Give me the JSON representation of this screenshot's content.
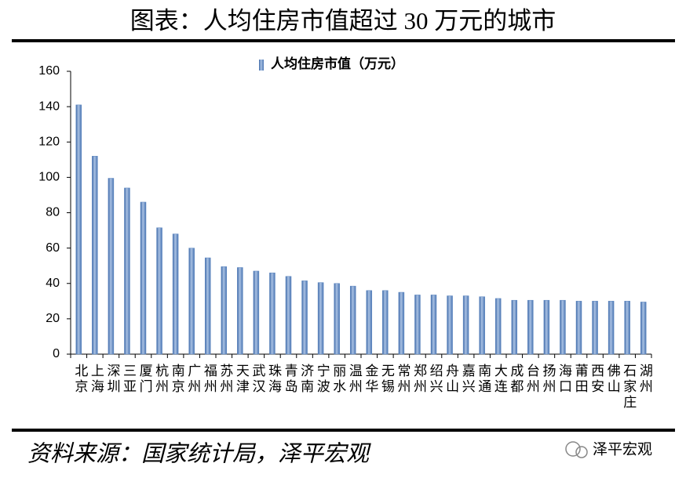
{
  "chart_data": {
    "type": "bar",
    "title": "图表：人均住房市值超过 30 万元的城市",
    "categories": [
      "北京",
      "上海",
      "深圳",
      "三亚",
      "厦门",
      "杭州",
      "南京",
      "广州",
      "福州",
      "苏州",
      "天津",
      "武汉",
      "珠海",
      "青岛",
      "济南",
      "宁波",
      "丽水",
      "温州",
      "金华",
      "无锡",
      "常州",
      "郑州",
      "绍兴",
      "舟山",
      "嘉兴",
      "南通",
      "大连",
      "成都",
      "台州",
      "扬州",
      "海口",
      "莆田",
      "西安",
      "佛山",
      "石家庄",
      "湖州"
    ],
    "series": [
      {
        "name": "人均住房市值（万元）",
        "color": "#5b86c0",
        "values": [
          141,
          112,
          99.5,
          94,
          86,
          71.5,
          68,
          60,
          54.5,
          49.5,
          49,
          47,
          46,
          44,
          41.5,
          40.5,
          40,
          38.5,
          36,
          36,
          35,
          33.5,
          33.5,
          33,
          33,
          32.5,
          31.5,
          30.5,
          30.5,
          30.5,
          30.5,
          30,
          30,
          30,
          30,
          29.5
        ]
      }
    ],
    "ylim": [
      0,
      160
    ],
    "yticks": [
      0,
      20,
      40,
      60,
      80,
      100,
      120,
      140,
      160
    ],
    "grid": false,
    "legend": "top"
  },
  "source": "资料来源：国家统计局，泽平宏观",
  "watermark": "泽平宏观"
}
